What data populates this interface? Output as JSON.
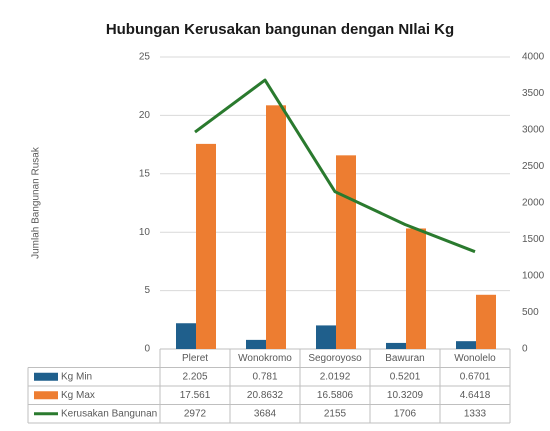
{
  "chart_data": {
    "type": "bar_line",
    "title": "Hubungan Kerusakan bangunan dengan NIlai Kg",
    "y_label": "Jumlah Bangunan Rusak",
    "categories": [
      "Pleret",
      "Wonokromo",
      "Segoroyoso",
      "Bawuran",
      "Wonolelo"
    ],
    "series": [
      {
        "name": "Kg Min",
        "type": "bar",
        "color": "#1f5f8c",
        "values": [
          2.205,
          0.781,
          2.0192,
          0.5201,
          0.6701
        ]
      },
      {
        "name": "Kg Max",
        "type": "bar",
        "color": "#ed7d31",
        "values": [
          17.561,
          20.8632,
          16.5806,
          10.3209,
          4.6418
        ]
      },
      {
        "name": "Kerusakan Bangunan",
        "type": "line",
        "axis": "y2",
        "color": "#2a7a2e",
        "values": [
          2972,
          3684,
          2155,
          1706,
          1333
        ]
      }
    ],
    "ylim": [
      0,
      25
    ],
    "yticks": [
      0,
      5,
      10,
      15,
      20,
      25
    ],
    "y2lim": [
      0,
      4000
    ],
    "y2ticks": [
      0,
      500,
      1000,
      1500,
      2000,
      2500,
      3000,
      3500,
      4000
    ],
    "grid": true,
    "data_table": true
  }
}
